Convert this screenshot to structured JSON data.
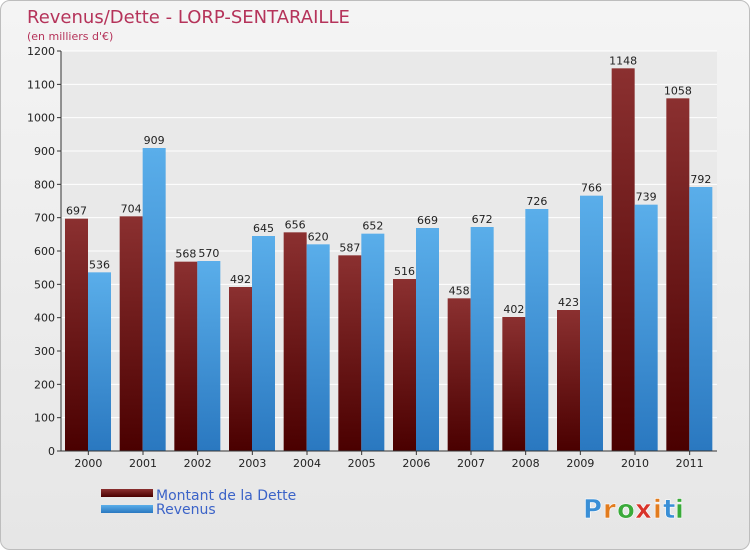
{
  "chart_data": {
    "type": "bar",
    "title": "Revenus/Dette - LORP-SENTARAILLE",
    "subtitle": "(en milliers d'€)",
    "categories": [
      "2000",
      "2001",
      "2002",
      "2003",
      "2004",
      "2005",
      "2006",
      "2007",
      "2008",
      "2009",
      "2010",
      "2011"
    ],
    "series": [
      {
        "name": "Montant de la Dette",
        "values": [
          697,
          704,
          568,
          492,
          656,
          587,
          516,
          458,
          402,
          423,
          1148,
          1058
        ]
      },
      {
        "name": "Revenus",
        "values": [
          536,
          909,
          570,
          645,
          620,
          652,
          669,
          672,
          726,
          766,
          739,
          792
        ]
      }
    ],
    "ylim": [
      0,
      1200
    ],
    "yticks": [
      0,
      100,
      200,
      300,
      400,
      500,
      600,
      700,
      800,
      900,
      1000,
      1100,
      1200
    ],
    "grid": true,
    "legend_position": "bottom-left"
  },
  "colors": {
    "debt_top": "#8b3030",
    "debt_bottom": "#4a0000",
    "revenue_top": "#5aaeea",
    "revenue_bottom": "#2a78c0",
    "title": "#b5335a"
  },
  "logo": {
    "letters": [
      "P",
      "r",
      "o",
      "x",
      "i",
      "t",
      "i"
    ],
    "letter_colors": [
      "#3a8fd6",
      "#e27c1e",
      "#3aaa3a",
      "#d8332a",
      "#e27c1e",
      "#3a8fd6",
      "#3aaa3a"
    ]
  }
}
